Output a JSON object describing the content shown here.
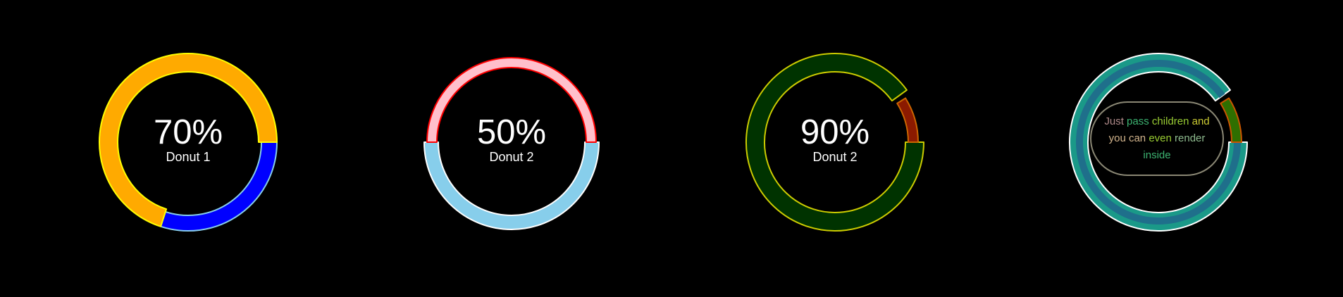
{
  "donuts": [
    {
      "percent": 70,
      "percent_label": "70%",
      "label": "Donut 1",
      "colors": {
        "value": "#ffaa00",
        "value_stroke": "#ffff00",
        "track": "#0000ff",
        "track_stroke": "#87ceeb"
      }
    },
    {
      "percent": 50,
      "percent_label": "50%",
      "label": "Donut 2",
      "colors": {
        "value": "#ffc0cb",
        "value_stroke": "#ff0000",
        "track": "#87ceeb",
        "track_stroke": "#ffffff"
      }
    },
    {
      "percent": 90,
      "percent_label": "90%",
      "label": "Donut 2",
      "colors": {
        "value": "#003300",
        "value_stroke": "#cccc00",
        "track": "#8b1a00",
        "track_stroke": "#cc6600"
      }
    },
    {
      "percent": 90,
      "colors": {
        "value": "#1a9988",
        "value_stroke": "#ffffff",
        "inner_band": "#1f6f8b",
        "track": "#2f6f00",
        "track_stroke": "#cc5500"
      },
      "message": {
        "words": [
          {
            "text": "Just",
            "color": "#b08a8a"
          },
          {
            "text": "pass",
            "color": "#3cb371"
          },
          {
            "text": "children",
            "color": "#99cc33"
          },
          {
            "text": "and",
            "color": "#cccc33"
          },
          {
            "text": "you",
            "color": "#d2b48c"
          },
          {
            "text": "can",
            "color": "#d2b48c"
          },
          {
            "text": "even",
            "color": "#9acd32"
          },
          {
            "text": "render",
            "color": "#8fbc8f"
          },
          {
            "text": "inside",
            "color": "#3cb371"
          }
        ]
      }
    }
  ]
}
